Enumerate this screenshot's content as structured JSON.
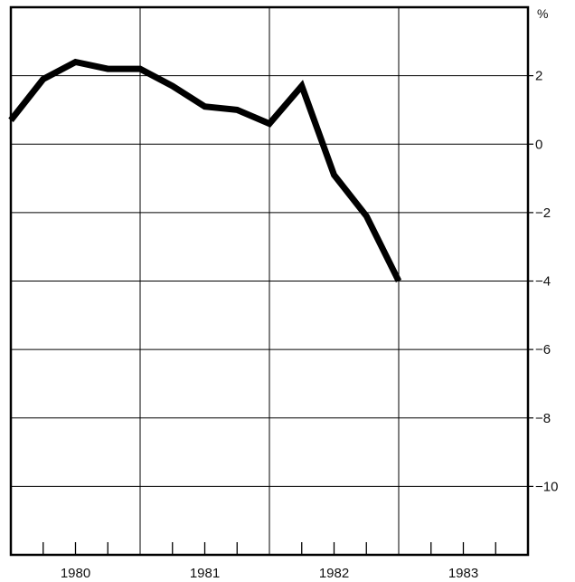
{
  "chart_data": {
    "type": "line",
    "title": "",
    "xlabel": "",
    "ylabel": "",
    "y_unit_label": "%",
    "y_axis_position": "right",
    "grid": true,
    "ylim": [
      -12,
      4
    ],
    "y_gridlines": [
      4,
      2,
      0,
      -2,
      -4,
      -6,
      -8,
      -10
    ],
    "y_tick_labels": [
      "2",
      "0",
      "−2",
      "−4",
      "−6",
      "−8",
      "−10"
    ],
    "y_tick_values": [
      2,
      0,
      -2,
      -4,
      -6,
      -8,
      -10
    ],
    "xlim": [
      1979.5,
      1983.5
    ],
    "x_tick_labels": [
      "1980",
      "1981",
      "1982",
      "1983"
    ],
    "x_tick_values": [
      1980,
      1981,
      1982,
      1983
    ],
    "x_label_offset": 0.0,
    "quarterly_ticks": true,
    "series": [
      {
        "x": [
          1979.5,
          1979.75,
          1980.0,
          1980.25,
          1980.5,
          1980.75,
          1981.0,
          1981.25,
          1981.5,
          1981.75,
          1982.0,
          1982.25,
          1982.5
        ],
        "values": [
          0.7,
          1.9,
          2.4,
          2.2,
          2.2,
          1.7,
          1.1,
          1.0,
          0.6,
          1.7,
          -0.9,
          -2.1,
          -4.0
        ]
      }
    ],
    "colors": {
      "line": "#000000",
      "grid": "#000000",
      "frame": "#000000"
    }
  }
}
